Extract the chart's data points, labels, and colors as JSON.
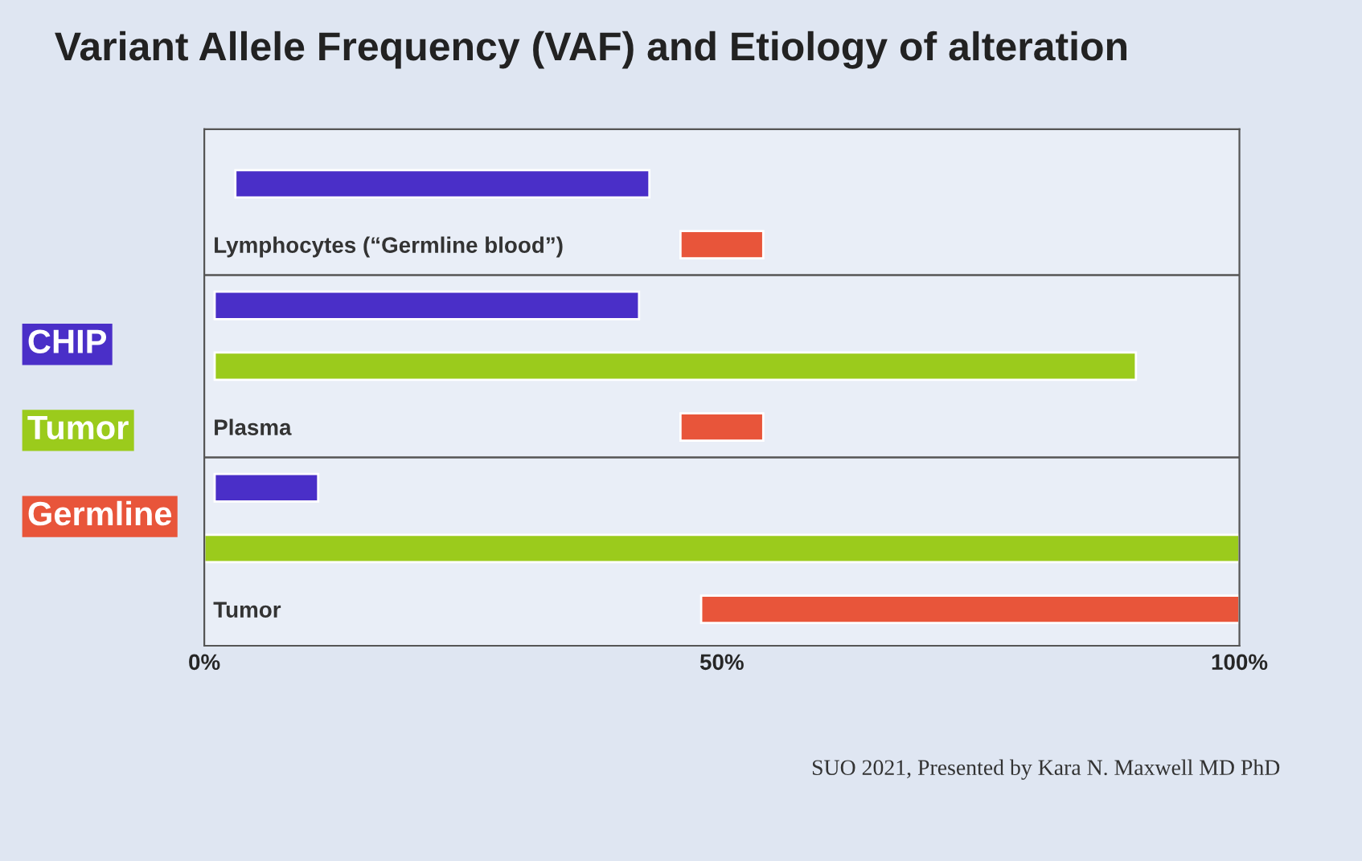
{
  "chart_data": {
    "type": "bar",
    "orientation": "horizontal",
    "title": "Variant Allele Frequency (VAF) and Etiology of alteration",
    "categories": [
      null,
      "Lymphocytes (“Germline blood”)",
      null,
      null,
      "Plasma",
      null,
      null,
      "Tumor"
    ],
    "xlim": [
      0,
      100
    ],
    "xticks": [
      {
        "value": 0,
        "label": "0%"
      },
      {
        "value": 50,
        "label": "50%"
      },
      {
        "value": 100,
        "label": "100%"
      }
    ],
    "grid": false,
    "legend": "left",
    "annotations": [
      "SUO 2021, Presented by Kara N. Maxwell MD PhD"
    ],
    "series": [
      {
        "name": "CHIP",
        "color": "#4a2fc8",
        "values": [
          40,
          null,
          41,
          null,
          null,
          10,
          null,
          null
        ],
        "base": [
          3,
          null,
          1,
          null,
          null,
          1,
          null,
          null
        ]
      },
      {
        "name": "Tumor",
        "color": "#9bcb1c",
        "values": [
          null,
          null,
          null,
          89,
          null,
          null,
          100,
          null
        ],
        "base": [
          null,
          null,
          null,
          1,
          null,
          null,
          0,
          null
        ]
      },
      {
        "name": "Germline",
        "color": "#e8553a",
        "values": [
          null,
          8,
          null,
          null,
          8,
          null,
          null,
          52
        ],
        "base": [
          null,
          46,
          null,
          null,
          46,
          null,
          null,
          48
        ]
      }
    ]
  }
}
